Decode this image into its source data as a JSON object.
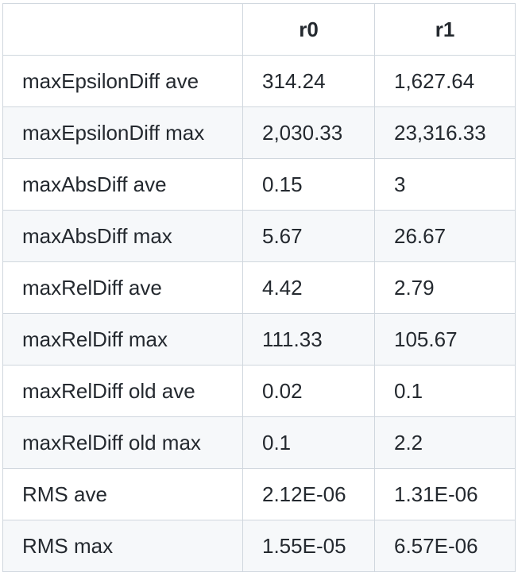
{
  "table": {
    "headers": [
      "",
      "r0",
      "r1"
    ],
    "rows": [
      {
        "label": "maxEpsilonDiff ave",
        "r0": "314.24",
        "r1": "1,627.64"
      },
      {
        "label": "maxEpsilonDiff max",
        "r0": "2,030.33",
        "r1": "23,316.33"
      },
      {
        "label": "maxAbsDiff ave",
        "r0": "0.15",
        "r1": "3"
      },
      {
        "label": "maxAbsDiff max",
        "r0": "5.67",
        "r1": "26.67"
      },
      {
        "label": "maxRelDiff ave",
        "r0": "4.42",
        "r1": "2.79"
      },
      {
        "label": "maxRelDiff max",
        "r0": "111.33",
        "r1": "105.67"
      },
      {
        "label": "maxRelDiff old ave",
        "r0": "0.02",
        "r1": "0.1"
      },
      {
        "label": "maxRelDiff old max",
        "r0": "0.1",
        "r1": "2.2"
      },
      {
        "label": "RMS ave",
        "r0": "2.12E-06",
        "r1": "1.31E-06"
      },
      {
        "label": "RMS max",
        "r0": "1.55E-05",
        "r1": "6.57E-06"
      }
    ]
  }
}
